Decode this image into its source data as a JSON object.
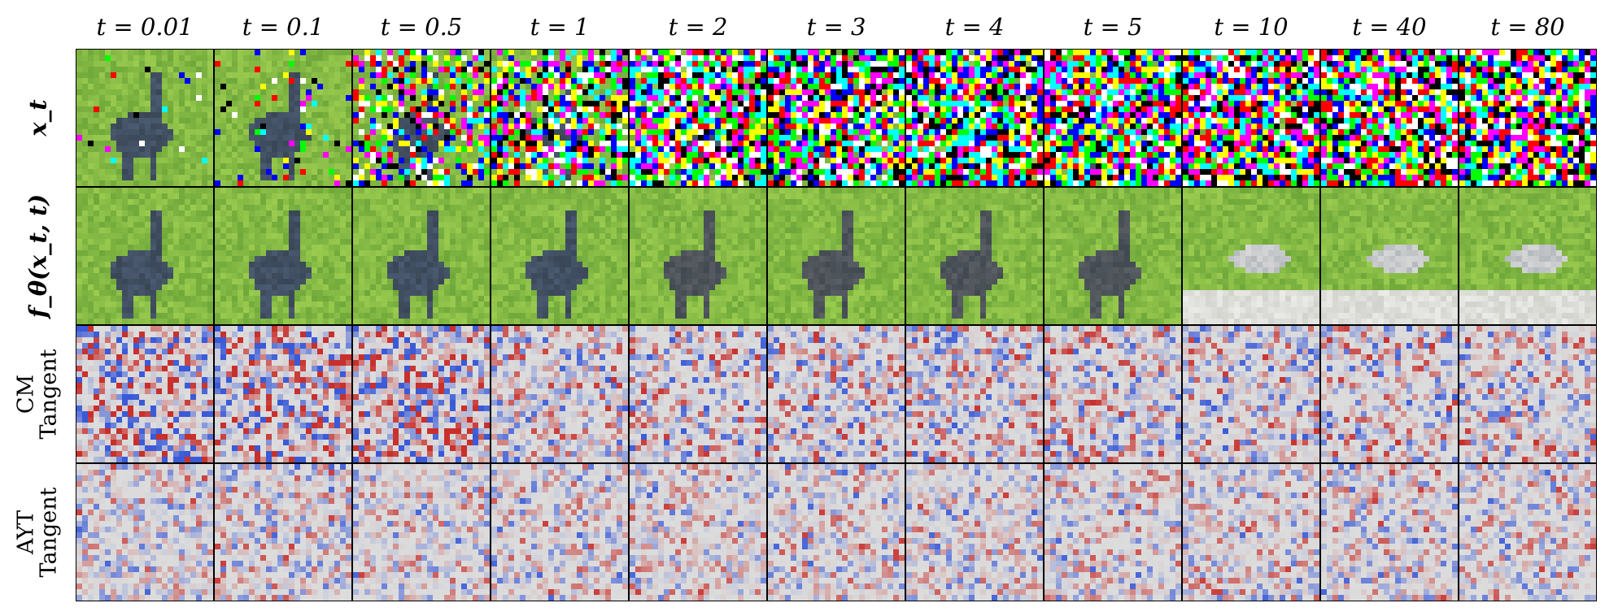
{
  "columns": [
    "t = 0.01",
    "t = 0.1",
    "t = 0.5",
    "t = 1",
    "t = 2",
    "t = 3",
    "t = 4",
    "t = 5",
    "t = 10",
    "t = 40",
    "t = 80"
  ],
  "rows": [
    {
      "label_lines": [
        "x_t"
      ],
      "kind": "noisy"
    },
    {
      "label_lines": [
        "f_θ(x_t, t)"
      ],
      "kind": "denoised"
    },
    {
      "label_lines": [
        "CM",
        "Tangent"
      ],
      "kind": "tangent"
    },
    {
      "label_lines": [
        "AYT",
        "Tangent"
      ],
      "kind": "tangent"
    }
  ],
  "colors": {
    "grass": "#6fa83a",
    "grass_light": "#9acb4f",
    "animal": "#4a5a70",
    "tangent_pos": "#c8302c",
    "tangent_neg": "#3a5ad8",
    "tangent_zero": "#dcdcdc",
    "border": "#000000"
  }
}
